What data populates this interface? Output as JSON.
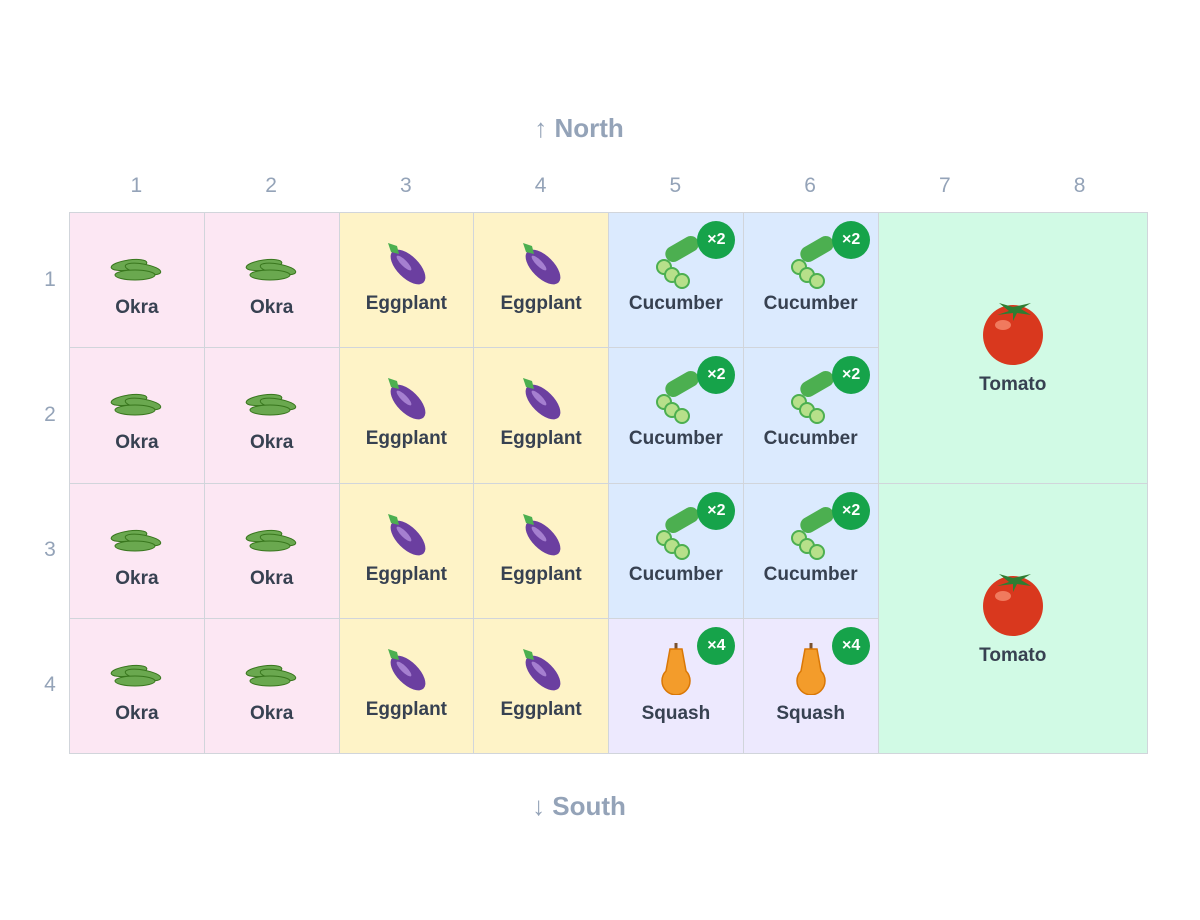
{
  "compass": {
    "north": "↑ North",
    "south": "↓ South"
  },
  "columns": [
    "1",
    "2",
    "3",
    "4",
    "5",
    "6",
    "7",
    "8"
  ],
  "rows": [
    "1",
    "2",
    "3",
    "4"
  ],
  "grid": {
    "rows": [
      [
        {
          "name": "Okra"
        },
        {
          "name": "Okra"
        },
        {
          "name": "Eggplant"
        },
        {
          "name": "Eggplant"
        },
        {
          "name": "Cucumber",
          "badge": "×2"
        },
        {
          "name": "Cucumber",
          "badge": "×2"
        },
        {
          "name": "Tomato"
        }
      ],
      [
        {
          "name": "Okra"
        },
        {
          "name": "Okra"
        },
        {
          "name": "Eggplant"
        },
        {
          "name": "Eggplant"
        },
        {
          "name": "Cucumber",
          "badge": "×2"
        },
        {
          "name": "Cucumber",
          "badge": "×2"
        }
      ],
      [
        {
          "name": "Okra"
        },
        {
          "name": "Okra"
        },
        {
          "name": "Eggplant"
        },
        {
          "name": "Eggplant"
        },
        {
          "name": "Cucumber",
          "badge": "×2"
        },
        {
          "name": "Cucumber",
          "badge": "×2"
        },
        {
          "name": "Tomato"
        }
      ],
      [
        {
          "name": "Okra"
        },
        {
          "name": "Okra"
        },
        {
          "name": "Eggplant"
        },
        {
          "name": "Eggplant"
        },
        {
          "name": "Squash",
          "badge": "×4"
        },
        {
          "name": "Squash",
          "badge": "×4"
        }
      ]
    ]
  }
}
